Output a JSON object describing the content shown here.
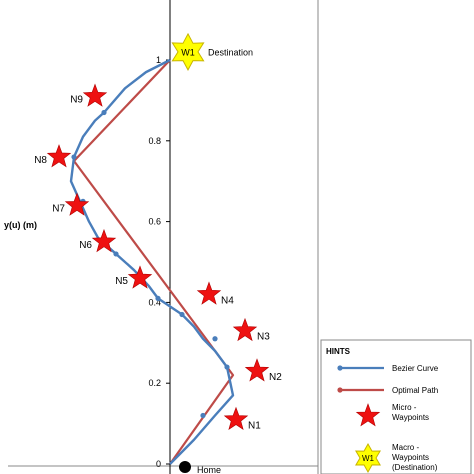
{
  "chart_data": {
    "type": "line",
    "title": "",
    "xlabel": "",
    "ylabel": "y(u) (m)",
    "xlim": [
      -0.5,
      0.5
    ],
    "ylim": [
      0,
      1.1
    ],
    "y_ticks": [
      0,
      0.2,
      0.4,
      0.6,
      0.8,
      1
    ],
    "y_tick_labels": [
      "0",
      "0.2",
      "0.4",
      "0.6",
      "0.8",
      "1"
    ],
    "grid": false,
    "legend_position": "bottom-right",
    "series": [
      {
        "name": "Bezier Curve",
        "color": "#4a7ebb",
        "points": [
          [
            0.0,
            0.0
          ],
          [
            0.08,
            0.06
          ],
          [
            0.15,
            0.12
          ],
          [
            0.21,
            0.17
          ],
          [
            0.19,
            0.24
          ],
          [
            0.15,
            0.28
          ],
          [
            0.11,
            0.31
          ],
          [
            0.08,
            0.34
          ],
          [
            0.04,
            0.37
          ],
          [
            -0.04,
            0.41
          ],
          [
            -0.07,
            0.44
          ],
          [
            -0.12,
            0.48
          ],
          [
            -0.18,
            0.52
          ],
          [
            -0.24,
            0.56
          ],
          [
            -0.27,
            0.6
          ],
          [
            -0.3,
            0.65
          ],
          [
            -0.33,
            0.7
          ],
          [
            -0.32,
            0.76
          ],
          [
            -0.29,
            0.81
          ],
          [
            -0.25,
            0.85
          ],
          [
            -0.22,
            0.87
          ],
          [
            -0.15,
            0.93
          ],
          [
            -0.08,
            0.97
          ],
          [
            0.0,
            1.0
          ]
        ],
        "markers": [
          [
            0.11,
            0.12
          ],
          [
            0.19,
            0.24
          ],
          [
            0.15,
            0.31
          ],
          [
            0.04,
            0.37
          ],
          [
            -0.04,
            0.41
          ],
          [
            -0.18,
            0.52
          ],
          [
            -0.29,
            0.65
          ],
          [
            -0.32,
            0.76
          ],
          [
            -0.22,
            0.87
          ]
        ]
      },
      {
        "name": "Optimal Path",
        "color": "#be4b48",
        "points": [
          [
            0.0,
            0.0
          ],
          [
            0.21,
            0.22
          ],
          [
            -0.32,
            0.75
          ],
          [
            0.0,
            1.0
          ]
        ]
      }
    ],
    "waypoints": [
      {
        "label": "N1",
        "x": 0.22,
        "y": 0.11,
        "label_side": "right"
      },
      {
        "label": "N2",
        "x": 0.29,
        "y": 0.23,
        "label_side": "right"
      },
      {
        "label": "N3",
        "x": 0.25,
        "y": 0.33,
        "label_side": "right"
      },
      {
        "label": "N4",
        "x": 0.13,
        "y": 0.42,
        "label_side": "right"
      },
      {
        "label": "N5",
        "x": -0.1,
        "y": 0.46,
        "label_side": "left"
      },
      {
        "label": "N6",
        "x": -0.22,
        "y": 0.55,
        "label_side": "left"
      },
      {
        "label": "N7",
        "x": -0.31,
        "y": 0.64,
        "label_side": "left"
      },
      {
        "label": "N8",
        "x": -0.37,
        "y": 0.76,
        "label_side": "left"
      },
      {
        "label": "N9",
        "x": -0.25,
        "y": 0.91,
        "label_side": "left"
      }
    ],
    "destination": {
      "label": "Destination",
      "marker_text": "W1",
      "x": 0.06,
      "y": 1.02
    },
    "home": {
      "label": "Home",
      "x": 0.05,
      "y": 0.0
    }
  },
  "legend": {
    "title": "HINTS",
    "items": [
      {
        "key": "bezier",
        "label_lines": [
          "Bezier Curve"
        ]
      },
      {
        "key": "optimal",
        "label_lines": [
          "Optimal Path"
        ]
      },
      {
        "key": "micro",
        "label_lines": [
          "Micro -",
          "Waypoints"
        ]
      },
      {
        "key": "macro",
        "label_lines": [
          "Macro -",
          "Waypoints",
          "(Destination)"
        ],
        "marker_text": "W1"
      }
    ]
  },
  "colors": {
    "bezier": "#4a7ebb",
    "optimal": "#be4b48",
    "star_fill": "#ee1111",
    "star_stroke": "#b00000",
    "destination_fill": "#ffff00",
    "destination_stroke": "#c8b400",
    "axis": "#000000",
    "frame": "#888888",
    "text": "#000000"
  }
}
